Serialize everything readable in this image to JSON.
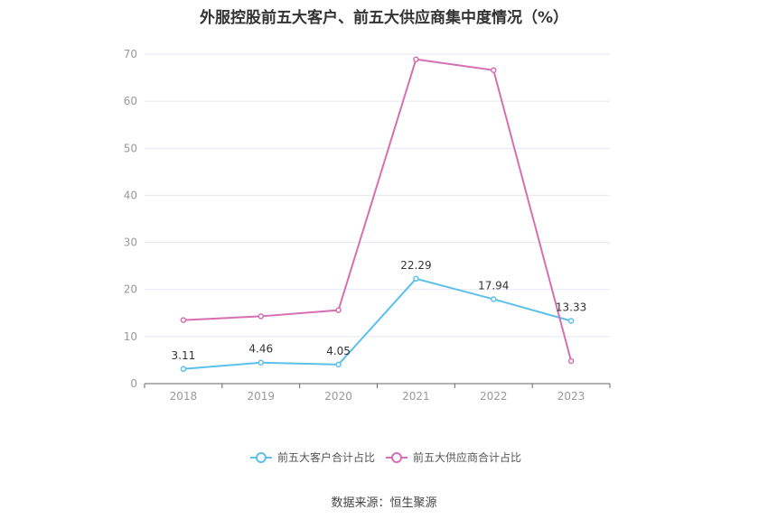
{
  "title": "外服控股前五大客户、前五大供应商集中度情况（%）",
  "source": "数据来源：恒生聚源",
  "colors": {
    "customers": "#5bc0eb",
    "suppliers": "#d66fb2",
    "grid": "#e4e7f0",
    "axis": "#666666",
    "tick_text": "#999999",
    "label_text": "#333333"
  },
  "chart_data": {
    "type": "line",
    "title": "外服控股前五大客户、前五大供应商集中度情况（%）",
    "xlabel": "",
    "ylabel": "",
    "categories": [
      "2018",
      "2019",
      "2020",
      "2021",
      "2022",
      "2023"
    ],
    "ylim": [
      0,
      70
    ],
    "yticks": [
      0,
      10,
      20,
      30,
      40,
      50,
      60,
      70
    ],
    "grid": true,
    "legend": "bottom",
    "series": [
      {
        "name": "前五大客户合计占比",
        "values": [
          3.11,
          4.46,
          4.05,
          22.29,
          17.94,
          13.33
        ],
        "labels": [
          "3.11",
          "4.46",
          "4.05",
          "22.29",
          "17.94",
          "13.33"
        ],
        "show_labels": true
      },
      {
        "name": "前五大供应商合计占比",
        "values": [
          13.5,
          14.3,
          15.6,
          68.9,
          66.6,
          4.8
        ],
        "show_labels": false
      }
    ]
  }
}
